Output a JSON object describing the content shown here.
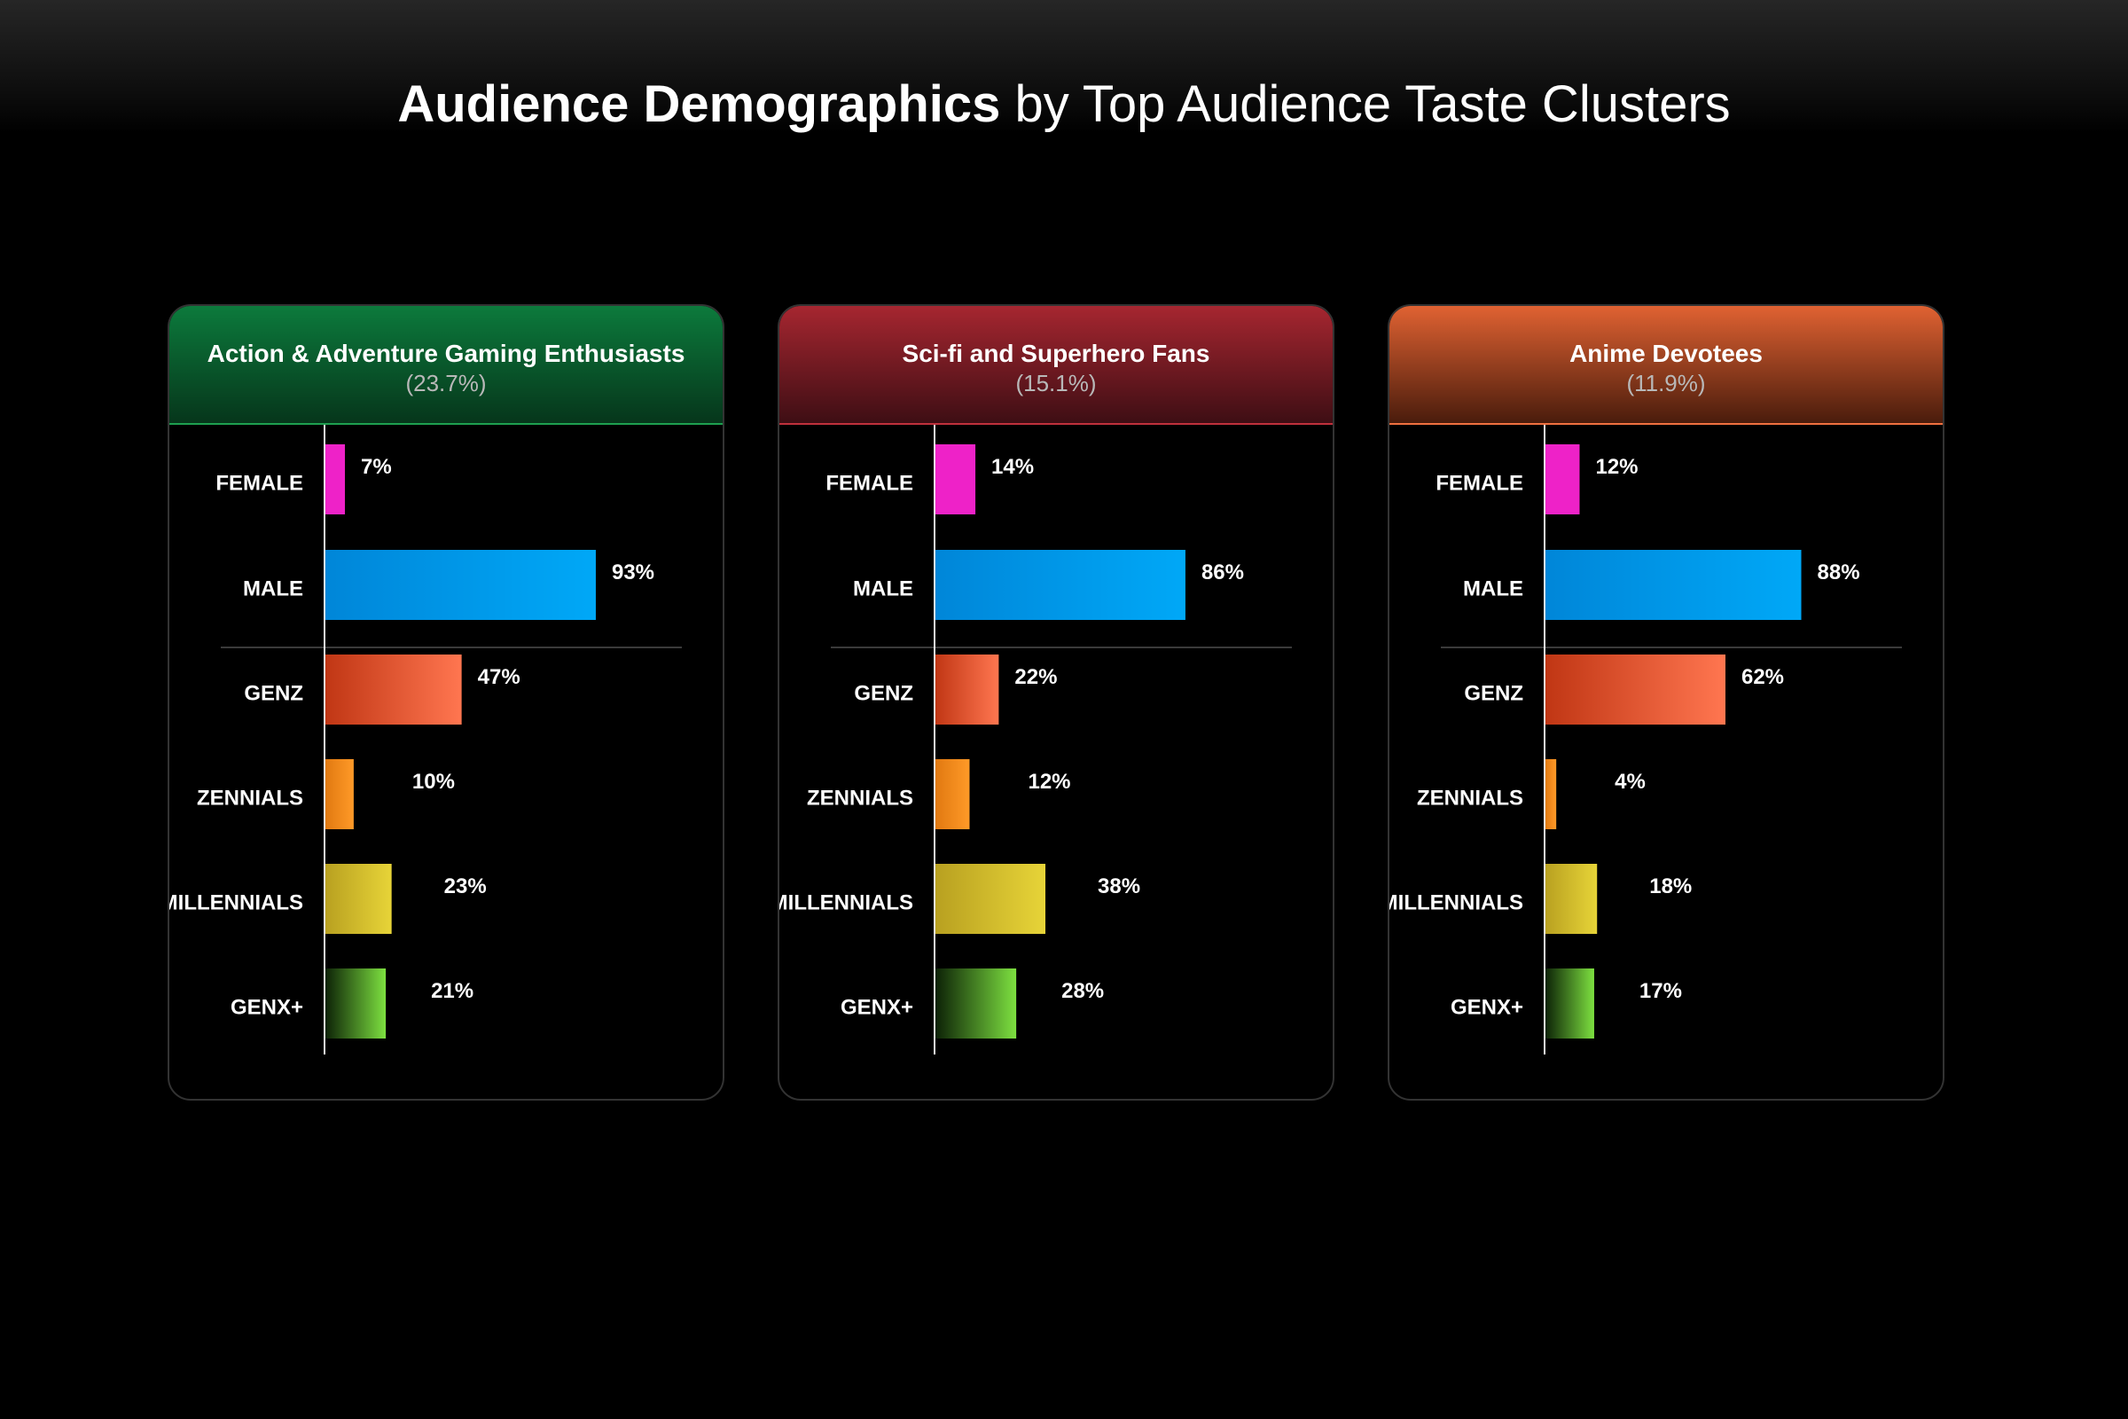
{
  "title": {
    "bold": "Audience Demographics",
    "rest": " by Top Audience Taste Clusters"
  },
  "colors": {
    "female": "#ee22c8",
    "male": "#00a8f7",
    "genz": "#ff7650",
    "zennials": "#ff9a28",
    "millennials": "#e7d438",
    "genx": "#7de040",
    "header_green": "#0c7a3c",
    "header_red": "#a62630",
    "header_orange": "#e06232"
  },
  "chart_data": [
    {
      "type": "bar",
      "orientation": "horizontal",
      "title": "Action & Adventure Gaming Enthusiasts",
      "share": "(23.7%)",
      "categories": [
        "FEMALE",
        "MALE",
        "GENZ",
        "ZENNIALS",
        "MILLENNIALS",
        "GENX+"
      ],
      "values": [
        7,
        93,
        47,
        10,
        23,
        21
      ],
      "labels": [
        "7%",
        "93%",
        "47%",
        "10%",
        "23%",
        "21%"
      ],
      "unit": "%",
      "xlim": [
        0,
        100
      ],
      "grid": false
    },
    {
      "type": "bar",
      "orientation": "horizontal",
      "title": "Sci-fi and Superhero Fans",
      "share": "(15.1%)",
      "categories": [
        "FEMALE",
        "MALE",
        "GENZ",
        "ZENNIALS",
        "MILLENNIALS",
        "GENX+"
      ],
      "values": [
        14,
        86,
        22,
        12,
        38,
        28
      ],
      "labels": [
        "14%",
        "86%",
        "22%",
        "12%",
        "38%",
        "28%"
      ],
      "unit": "%",
      "xlim": [
        0,
        100
      ],
      "grid": false
    },
    {
      "type": "bar",
      "orientation": "horizontal",
      "title": "Anime Devotees",
      "share": "(11.9%)",
      "categories": [
        "FEMALE",
        "MALE",
        "GENZ",
        "ZENNIALS",
        "MILLENNIALS",
        "GENX+"
      ],
      "values": [
        12,
        88,
        62,
        4,
        18,
        17
      ],
      "labels": [
        "12%",
        "88%",
        "62%",
        "4%",
        "18%",
        "17%"
      ],
      "unit": "%",
      "xlim": [
        0,
        100
      ],
      "grid": false
    }
  ]
}
